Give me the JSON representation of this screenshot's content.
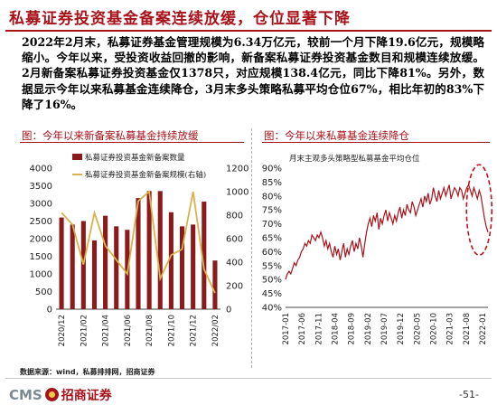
{
  "header": {
    "title": "私募证券投资基金备案连续放缓，仓位显著下降"
  },
  "body": {
    "paragraph": "2022年2月末，私募证券基金管理规模为6.34万亿元，较前一个月下降19.6亿元，规模略缩小。今年以来，受投资收益回撤的影响，新备案私募证券投资基金数目和规模连续放缓。2月新备案私募证券投资基金仅1378只，对应规模138.4亿元，同比下降81%。另外，数据显示今年以来私募基金连续降仓，3月末多头策略私募平均仓位67%，相比年初的83%下降了16%。"
  },
  "left_panel": {
    "title": "图：今年以来新备案私募基金持续放缓"
  },
  "right_panel": {
    "title": "图：今年以来私募基金连续降仓"
  },
  "footer": {
    "source": "数据来源：wind，私募排排网，招商证券",
    "logo_latin": "CMS",
    "logo_cn": "招商证券",
    "page_number": "-51-"
  },
  "colors": {
    "accent": "#a8121a",
    "bar": "#8b1a1a",
    "line": "#d9b24e",
    "line2": "#a8121a",
    "highlight": "#c0121a"
  },
  "chart_data": [
    {
      "type": "bar",
      "title": "",
      "categories": [
        "2020-12",
        "2021-01",
        "2021-02",
        "2021-03",
        "2021-04",
        "2021-05",
        "2021-06",
        "2021-07",
        "2021-08",
        "2021-09",
        "2021-10",
        "2021-11",
        "2021-12",
        "2022-01",
        "2022-02"
      ],
      "x_tick_labels": [
        "2020/12",
        "2021/02",
        "2021/04",
        "2021/06",
        "2021/08",
        "2021/10",
        "2021/12",
        "2022/02"
      ],
      "series": [
        {
          "name": "私募证券投资基金新备案数量",
          "type": "bar",
          "axis": "left",
          "values": [
            2600,
            2400,
            2500,
            1950,
            2650,
            2350,
            2250,
            3150,
            3350,
            3350,
            2750,
            2350,
            2400,
            3050,
            1380
          ]
        },
        {
          "name": "私募证券投资基金新备案规模(右轴)",
          "type": "line",
          "axis": "right",
          "values": [
            820,
            720,
            380,
            820,
            540,
            420,
            300,
            920,
            1000,
            260,
            460,
            510,
            1000,
            340,
            138
          ]
        }
      ],
      "ylim_left": [
        0,
        4000
      ],
      "yticks_left": [
        0,
        500,
        1000,
        1500,
        2000,
        2500,
        3000,
        3500,
        4000
      ],
      "ylim_right": [
        0,
        1200
      ],
      "yticks_right": [
        0,
        200,
        400,
        600,
        800,
        1000,
        1200
      ],
      "legend": "top-left",
      "grid": false
    },
    {
      "type": "line",
      "title": "月末主观多头策略型私募基金平均仓位",
      "x_tick_labels": [
        "2017-01",
        "2017-06",
        "2017-11",
        "2018-04",
        "2018-09",
        "2019-02",
        "2019-07",
        "2019-12",
        "2020-05",
        "2020-10",
        "2021-03",
        "2021-08",
        "2022-01"
      ],
      "x_start": "2017-01",
      "x_step": "half-month",
      "series": [
        {
          "name": "月末主观多头策略型私募基金平均仓位",
          "values": [
            50,
            52,
            53,
            52,
            54,
            56,
            55,
            57,
            58,
            60,
            61,
            63,
            62,
            64,
            63,
            66,
            65,
            64,
            66,
            65,
            67,
            65,
            62,
            64,
            61,
            63,
            60,
            58,
            62,
            59,
            61,
            57,
            60,
            63,
            58,
            61,
            59,
            62,
            64,
            60,
            63,
            61,
            65,
            62,
            58,
            63,
            67,
            70,
            72,
            69,
            73,
            71,
            74,
            68,
            72,
            70,
            73,
            75,
            71,
            74,
            72,
            70,
            73,
            71,
            74,
            76,
            72,
            75,
            73,
            77,
            75,
            74,
            78,
            76,
            73,
            75,
            77,
            79,
            76,
            80,
            78,
            81,
            77,
            79,
            83,
            80,
            78,
            82,
            79,
            81,
            83,
            80,
            82,
            84,
            79,
            81,
            83,
            82,
            80,
            83,
            82,
            79,
            81,
            83,
            84,
            82,
            80,
            83,
            81,
            79,
            82,
            80,
            76,
            72,
            69,
            67
          ]
        }
      ],
      "ylim": [
        40,
        90
      ],
      "yticks": [
        40,
        45,
        50,
        55,
        60,
        65,
        70,
        75,
        80,
        85,
        90
      ],
      "highlight": "last-few-months",
      "grid": false
    }
  ]
}
